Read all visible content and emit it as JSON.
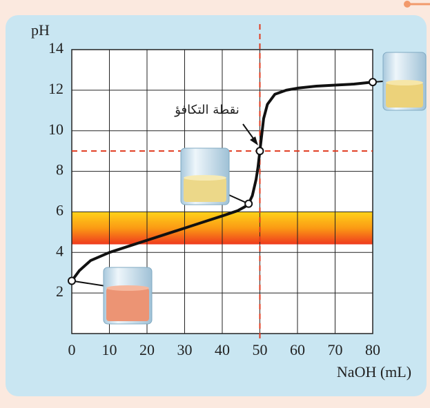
{
  "chart_data": {
    "type": "line",
    "x_label": "NaOH (mL)",
    "y_label": "pH",
    "x": [
      0,
      2,
      5,
      10,
      15,
      20,
      25,
      30,
      35,
      40,
      44,
      46,
      47,
      48,
      49,
      49.5,
      50,
      50.5,
      51,
      52,
      54,
      57,
      60,
      65,
      70,
      75,
      80
    ],
    "series": [
      {
        "color": "#111111",
        "values": [
          2.6,
          3.1,
          3.6,
          4.0,
          4.3,
          4.6,
          4.9,
          5.2,
          5.5,
          5.8,
          6.05,
          6.25,
          6.4,
          6.8,
          7.6,
          8.2,
          9,
          9.8,
          10.6,
          11.3,
          11.8,
          12.0,
          12.1,
          12.2,
          12.25,
          12.3,
          12.4
        ]
      }
    ],
    "markers": {
      "x": [
        0,
        47,
        50,
        80
      ],
      "y": [
        2.6,
        6.4,
        9,
        12.4
      ]
    },
    "xlim": [
      0,
      80
    ],
    "ylim": [
      0,
      14
    ],
    "xticks": [
      0,
      10,
      20,
      30,
      40,
      50,
      60,
      70,
      80
    ],
    "yticks": [
      2,
      4,
      6,
      8,
      10,
      12,
      14
    ],
    "grid": true,
    "indicator_band": [
      4.4,
      6
    ],
    "equivalence_x": 50,
    "equivalence_y": 9,
    "highlight_color": "#e03a1e",
    "annotation": "نقطة التكافؤ"
  }
}
